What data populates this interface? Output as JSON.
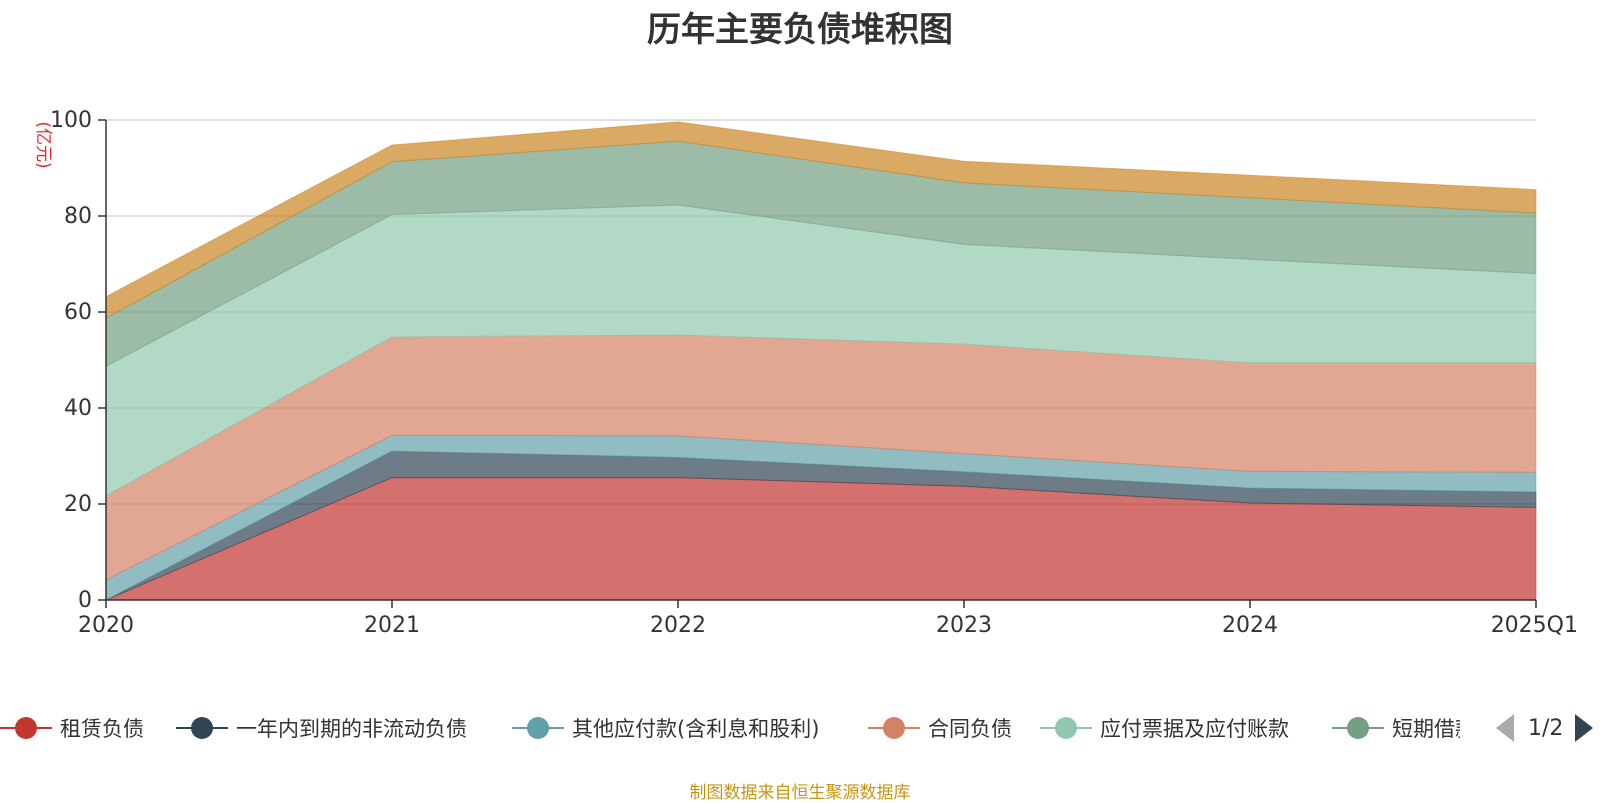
{
  "chart_data": {
    "type": "area",
    "stacked": true,
    "title": "历年主要负债堆积图",
    "ylabel": "(亿元)",
    "xlabel": "",
    "ylim": [
      0,
      100
    ],
    "yticks": [
      0,
      20,
      40,
      60,
      80,
      100
    ],
    "categories": [
      "2020",
      "2021",
      "2022",
      "2023",
      "2024",
      "2025Q1"
    ],
    "grid": true,
    "series": [
      {
        "name": "租赁负债",
        "color": "#c23531",
        "values": [
          0,
          25.5,
          25.5,
          23.7,
          20.2,
          19.3
        ]
      },
      {
        "name": "一年内到期的非流动负债",
        "color": "#2f4554",
        "values": [
          0,
          5.5,
          4.2,
          3.0,
          3.1,
          3.2
        ]
      },
      {
        "name": "其他应付款(含利息和股利)",
        "color": "#61a0a8",
        "values": [
          4.2,
          3.3,
          4.5,
          3.8,
          3.5,
          4.1
        ]
      },
      {
        "name": "合同负债",
        "color": "#d48265",
        "values": [
          17.5,
          20.5,
          21.0,
          22.8,
          22.6,
          22.8
        ]
      },
      {
        "name": "应付票据及应付账款",
        "color": "#91c7ae",
        "values": [
          27.0,
          25.5,
          27.1,
          20.8,
          21.6,
          18.6
        ]
      },
      {
        "name": "短期借款",
        "color": "#749f83",
        "values": [
          10.0,
          11.0,
          13.3,
          12.8,
          12.8,
          12.6
        ]
      },
      {
        "name": "",
        "color": "#ca8622",
        "values": [
          4.5,
          3.5,
          4.0,
          4.5,
          4.7,
          4.9
        ]
      }
    ],
    "legend": {
      "placement": "bottom",
      "page": "1/2"
    }
  },
  "legend_items": [
    {
      "label": "租赁负债",
      "color": "#c23531"
    },
    {
      "label": "一年内到期的非流动负债",
      "color": "#2f4554"
    },
    {
      "label": "其他应付款(含利息和股利)",
      "color": "#61a0a8"
    },
    {
      "label": "合同负债",
      "color": "#d48265"
    },
    {
      "label": "应付票据及应付账款",
      "color": "#91c7ae"
    },
    {
      "label": "短期借款",
      "color": "#749f83"
    }
  ],
  "pager": {
    "text": "1/2"
  },
  "footer": {
    "source": "制图数据来自恒生聚源数据库"
  }
}
